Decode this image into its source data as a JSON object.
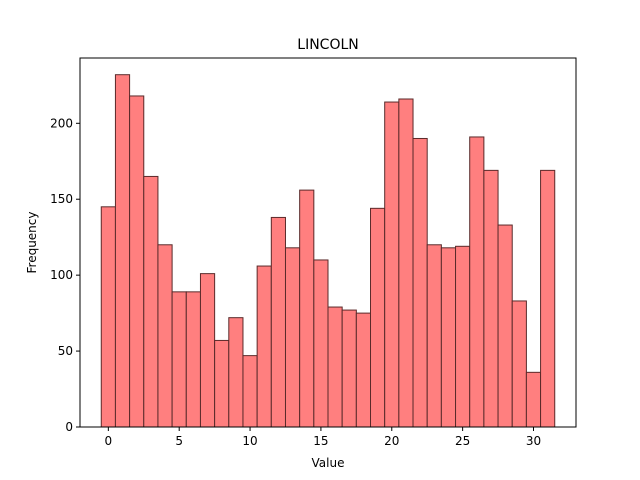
{
  "chart_data": {
    "type": "bar",
    "title": "LINCOLN",
    "xlabel": "Value",
    "ylabel": "Frequency",
    "bar_color": "#ff7f7f",
    "edge_color": "#5a2a2a",
    "xlim": [
      -2,
      33
    ],
    "ylim": [
      0,
      243
    ],
    "x_ticks": [
      0,
      5,
      10,
      15,
      20,
      25,
      30
    ],
    "y_ticks": [
      0,
      50,
      100,
      150,
      200
    ],
    "grid": false,
    "bins": [
      {
        "x": 0,
        "value": 145
      },
      {
        "x": 1,
        "value": 232
      },
      {
        "x": 2,
        "value": 218
      },
      {
        "x": 3,
        "value": 165
      },
      {
        "x": 4,
        "value": 120
      },
      {
        "x": 5,
        "value": 89
      },
      {
        "x": 6,
        "value": 89
      },
      {
        "x": 7,
        "value": 101
      },
      {
        "x": 8,
        "value": 57
      },
      {
        "x": 9,
        "value": 72
      },
      {
        "x": 10,
        "value": 47
      },
      {
        "x": 11,
        "value": 106
      },
      {
        "x": 12,
        "value": 138
      },
      {
        "x": 13,
        "value": 118
      },
      {
        "x": 14,
        "value": 156
      },
      {
        "x": 15,
        "value": 110
      },
      {
        "x": 16,
        "value": 79
      },
      {
        "x": 17,
        "value": 77
      },
      {
        "x": 18,
        "value": 75
      },
      {
        "x": 19,
        "value": 144
      },
      {
        "x": 20,
        "value": 214
      },
      {
        "x": 21,
        "value": 216
      },
      {
        "x": 22,
        "value": 190
      },
      {
        "x": 23,
        "value": 120
      },
      {
        "x": 24,
        "value": 118
      },
      {
        "x": 25,
        "value": 119
      },
      {
        "x": 26,
        "value": 191
      },
      {
        "x": 27,
        "value": 169
      },
      {
        "x": 28,
        "value": 133
      },
      {
        "x": 29,
        "value": 83
      },
      {
        "x": 30,
        "value": 36
      },
      {
        "x": 31,
        "value": 169
      }
    ]
  }
}
